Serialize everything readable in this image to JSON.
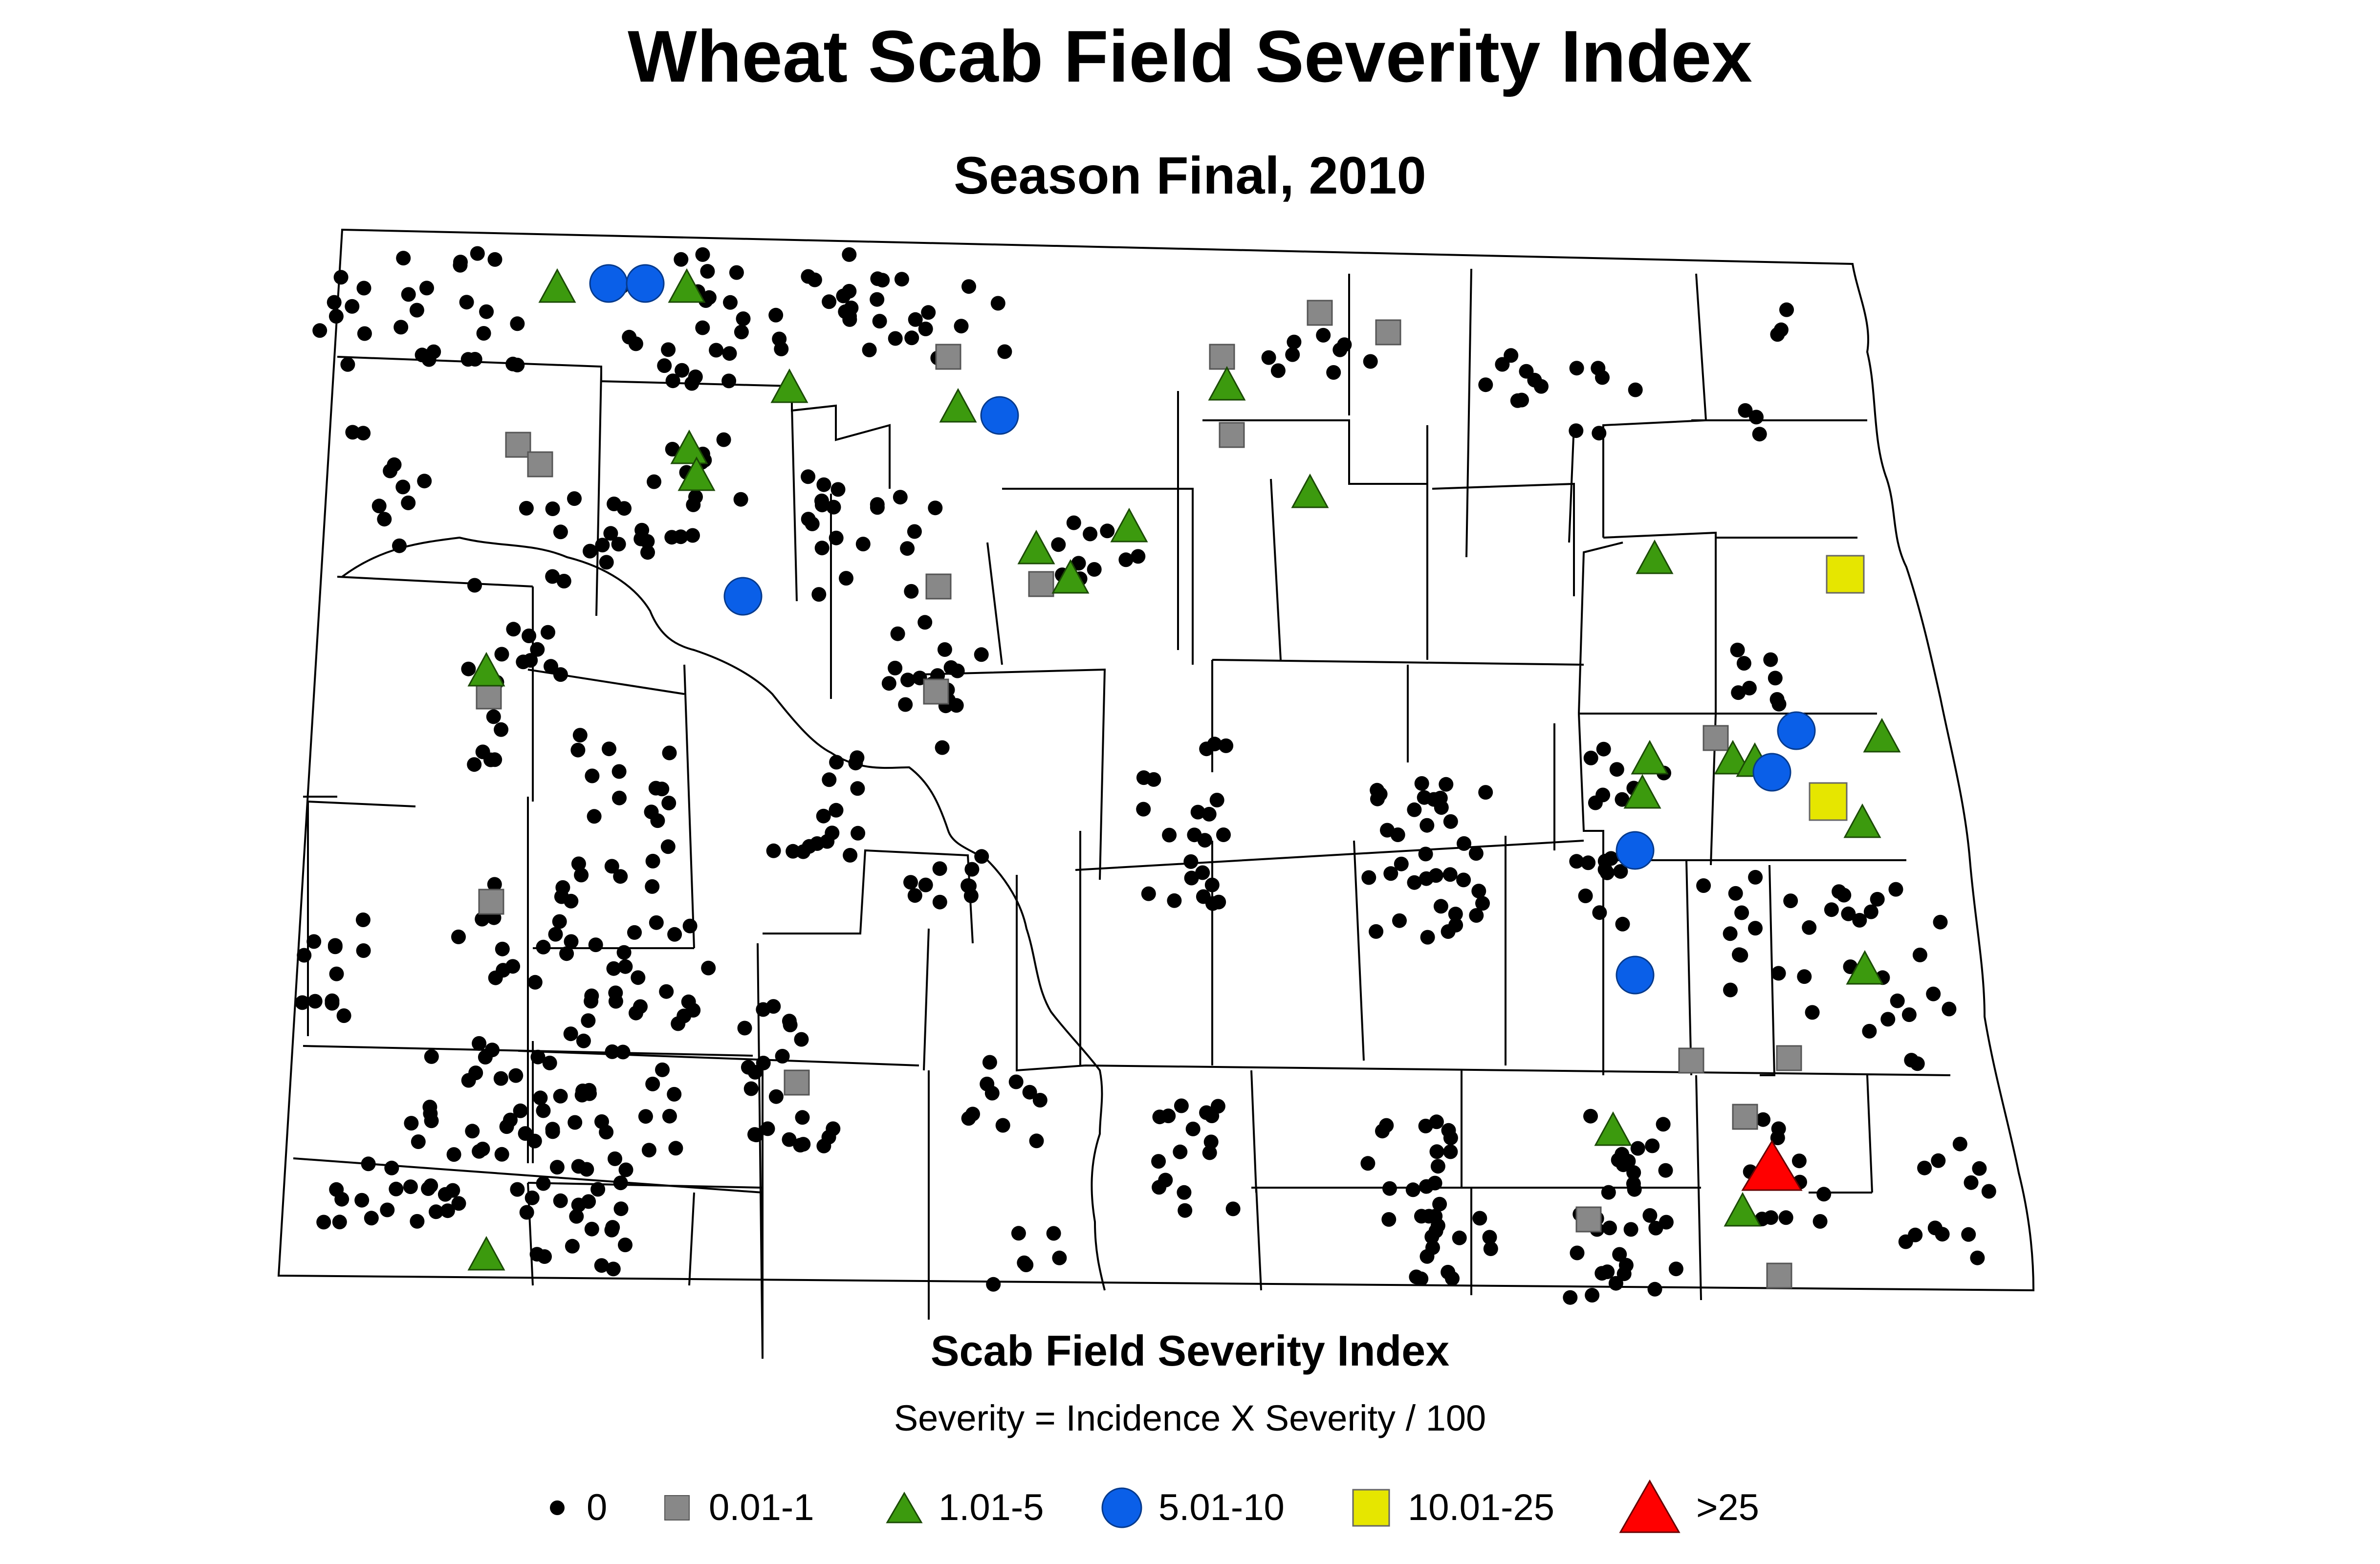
{
  "title": "Wheat Scab Field Severity Index",
  "subtitle": "Season Final, 2010",
  "legend": {
    "title": "Scab Field Severity Index",
    "subtitle": "Severity = Incidence X Severity / 100",
    "items": [
      {
        "label": "0",
        "shape": "dot",
        "color": "#000000"
      },
      {
        "label": "0.01-1",
        "shape": "square",
        "color": "#888888"
      },
      {
        "label": "1.01-5",
        "shape": "triangle",
        "color": "#3c9a0e"
      },
      {
        "label": "5.01-10",
        "shape": "circle",
        "color": "#0a5fe8"
      },
      {
        "label": "10.01-25",
        "shape": "square-large",
        "color": "#e6e600"
      },
      {
        "label": ">25",
        "shape": "triangle-large",
        "color": "#ff0000"
      }
    ]
  },
  "map_region": "North Dakota counties",
  "colors": {
    "background": "#ffffff",
    "boundary": "#000000",
    "cat0": "#000000",
    "cat1": "#888888",
    "cat2": "#3c9a0e",
    "cat3": "#0a5fe8",
    "cat4": "#e6e600",
    "cat5": "#ff0000"
  }
}
